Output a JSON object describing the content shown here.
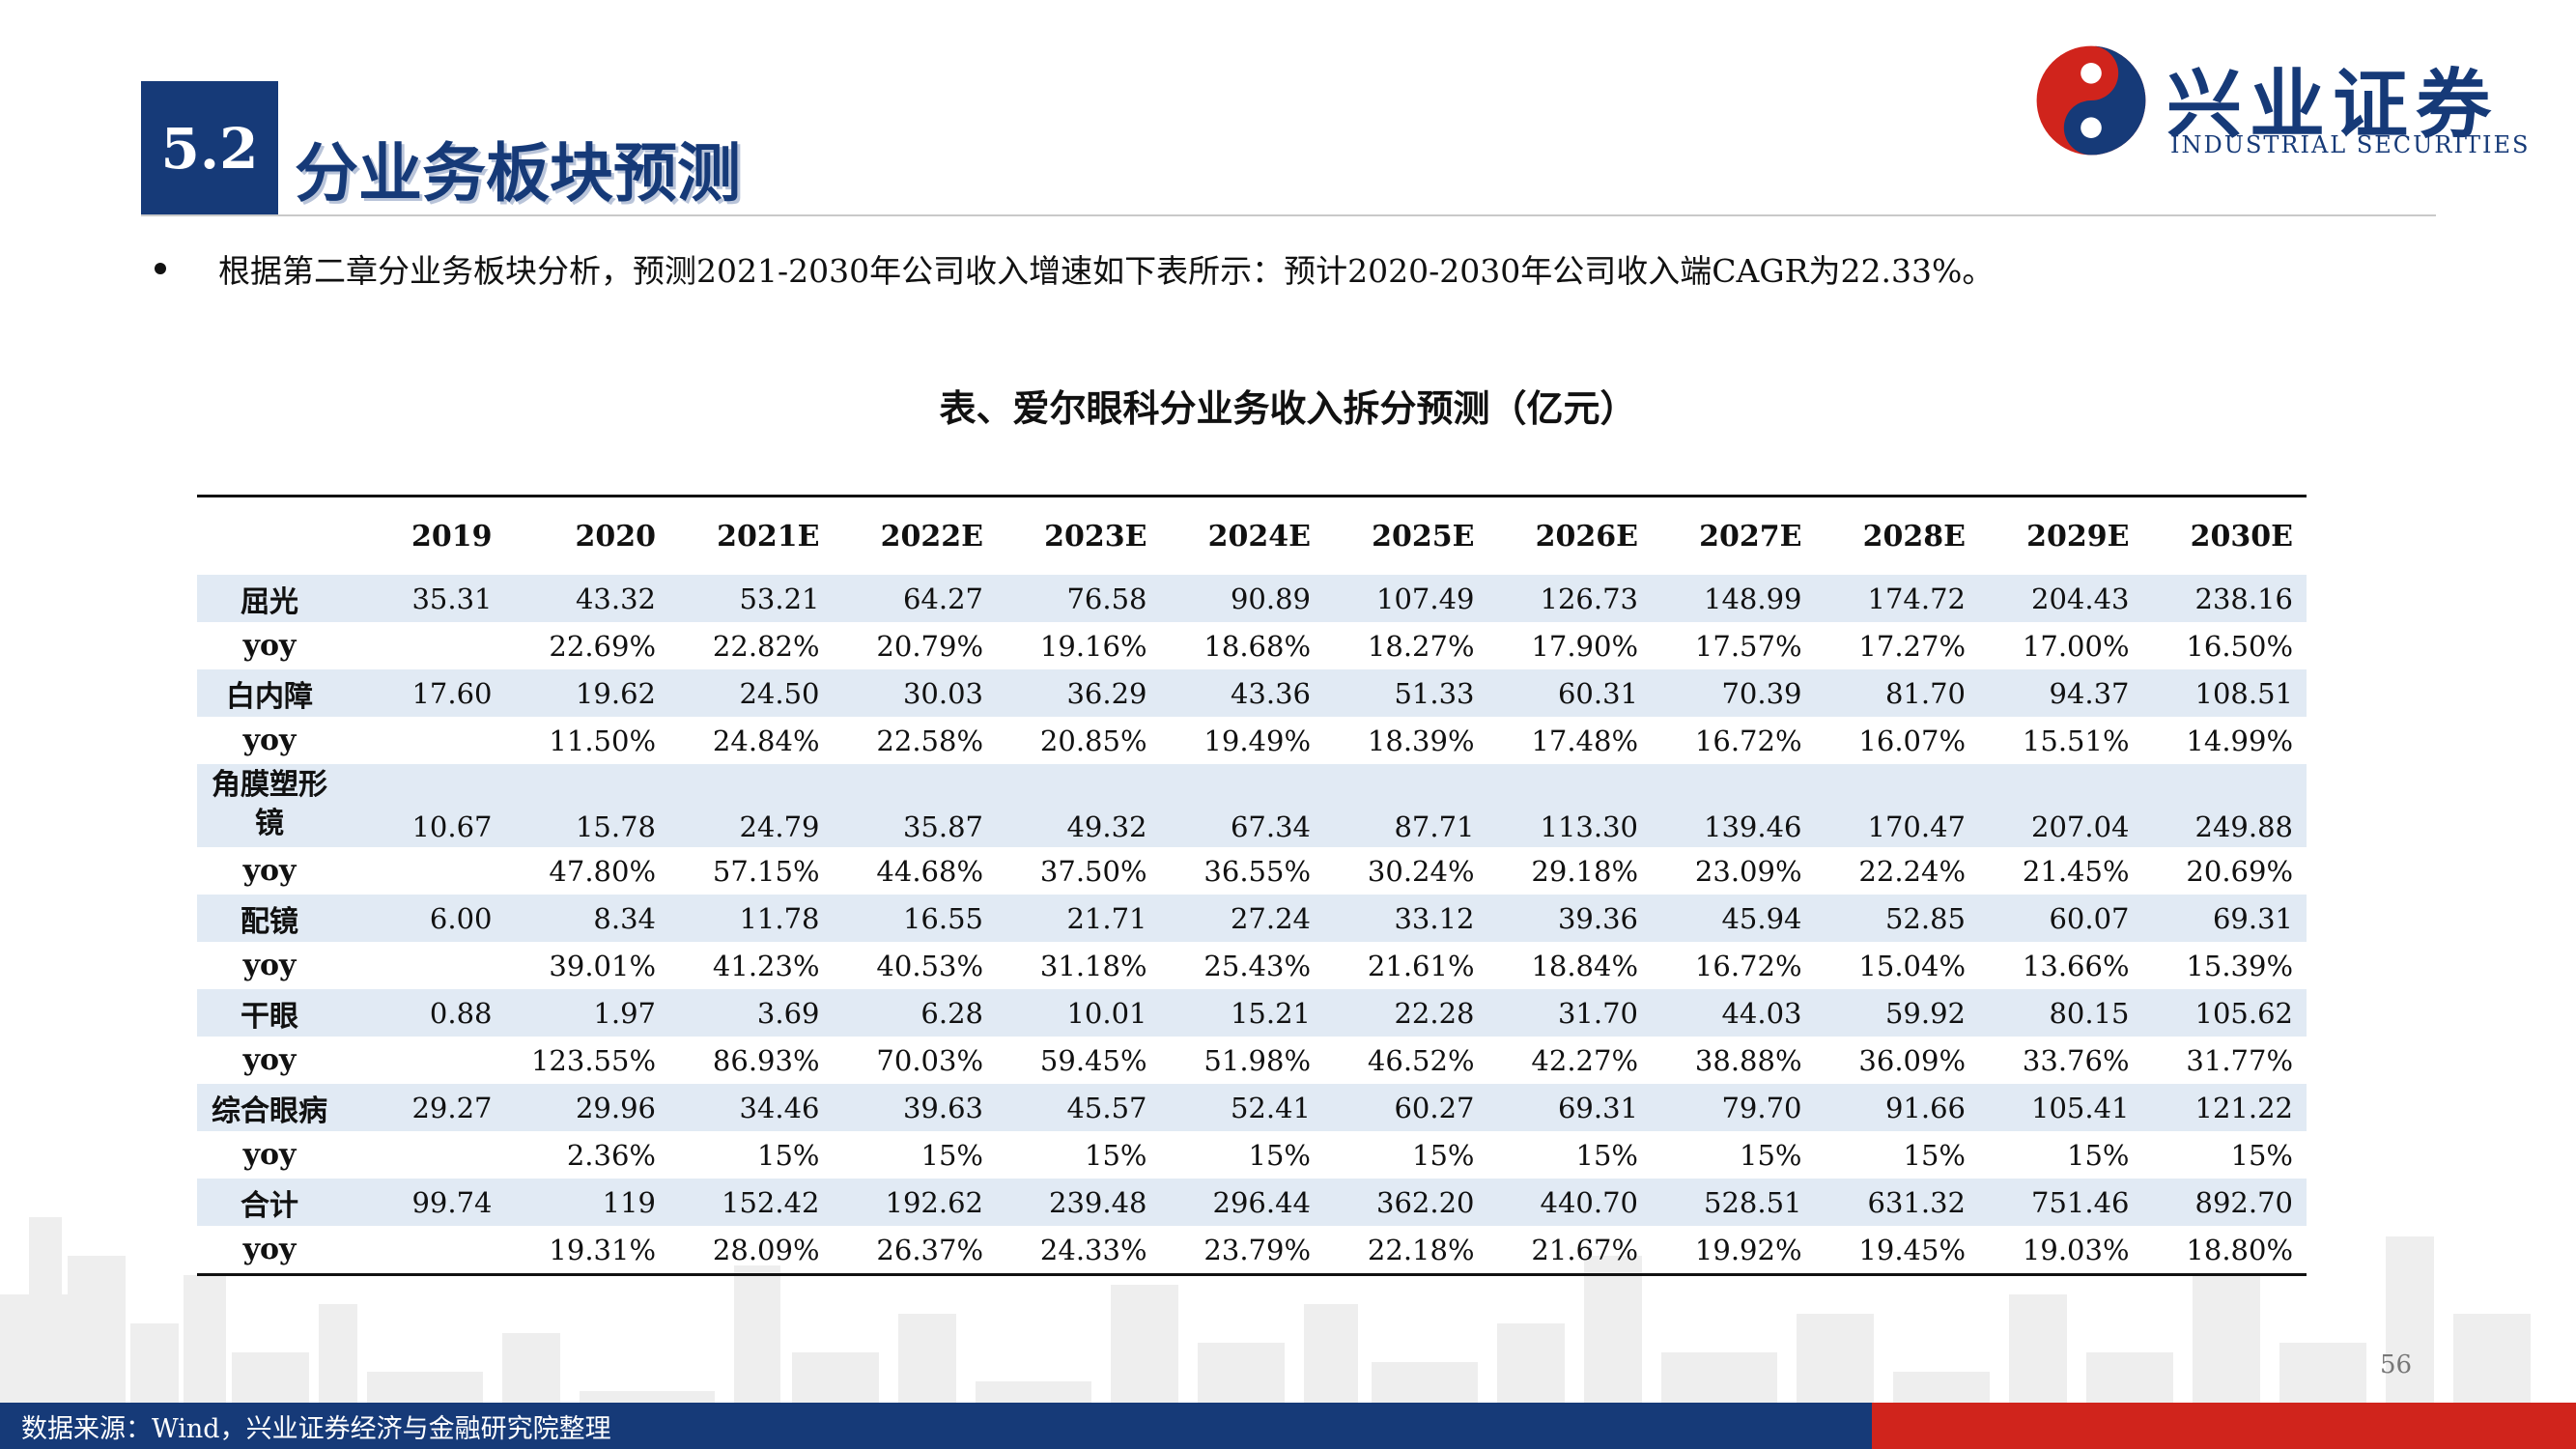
{
  "header": {
    "section_number": "5.2",
    "section_title": "分业务板块预测"
  },
  "logo": {
    "name_cn": "兴业证券",
    "name_en": "INDUSTRIAL SECURITIES",
    "colors": {
      "blue": "#163a78",
      "red": "#d0241c"
    }
  },
  "bullet": "根据第二章分业务板块分析，预测2021-2030年公司收入增速如下表所示：预计2020-2030年公司收入端CAGR为22.33%。",
  "table": {
    "title": "表、爱尔眼科分业务收入拆分预测（亿元）",
    "columns": [
      "",
      "2019",
      "2020",
      "2021E",
      "2022E",
      "2023E",
      "2024E",
      "2025E",
      "2026E",
      "2027E",
      "2028E",
      "2029E",
      "2030E"
    ],
    "rows": [
      {
        "label": "屈光",
        "values": [
          "35.31",
          "43.32",
          "53.21",
          "64.27",
          "76.58",
          "90.89",
          "107.49",
          "126.73",
          "148.99",
          "174.72",
          "204.43",
          "238.16"
        ]
      },
      {
        "label": "yoy",
        "values": [
          "",
          "22.69%",
          "22.82%",
          "20.79%",
          "19.16%",
          "18.68%",
          "18.27%",
          "17.90%",
          "17.57%",
          "17.27%",
          "17.00%",
          "16.50%"
        ]
      },
      {
        "label": "白内障",
        "values": [
          "17.60",
          "19.62",
          "24.50",
          "30.03",
          "36.29",
          "43.36",
          "51.33",
          "60.31",
          "70.39",
          "81.70",
          "94.37",
          "108.51"
        ]
      },
      {
        "label": "yoy",
        "values": [
          "",
          "11.50%",
          "24.84%",
          "22.58%",
          "20.85%",
          "19.49%",
          "18.39%",
          "17.48%",
          "16.72%",
          "16.07%",
          "15.51%",
          "14.99%"
        ]
      },
      {
        "label": "角膜塑形镜",
        "values": [
          "10.67",
          "15.78",
          "24.79",
          "35.87",
          "49.32",
          "67.34",
          "87.71",
          "113.30",
          "139.46",
          "170.47",
          "207.04",
          "249.88"
        ]
      },
      {
        "label": "yoy",
        "values": [
          "",
          "47.80%",
          "57.15%",
          "44.68%",
          "37.50%",
          "36.55%",
          "30.24%",
          "29.18%",
          "23.09%",
          "22.24%",
          "21.45%",
          "20.69%"
        ]
      },
      {
        "label": "配镜",
        "values": [
          "6.00",
          "8.34",
          "11.78",
          "16.55",
          "21.71",
          "27.24",
          "33.12",
          "39.36",
          "45.94",
          "52.85",
          "60.07",
          "69.31"
        ]
      },
      {
        "label": "yoy",
        "values": [
          "",
          "39.01%",
          "41.23%",
          "40.53%",
          "31.18%",
          "25.43%",
          "21.61%",
          "18.84%",
          "16.72%",
          "15.04%",
          "13.66%",
          "15.39%"
        ]
      },
      {
        "label": "干眼",
        "values": [
          "0.88",
          "1.97",
          "3.69",
          "6.28",
          "10.01",
          "15.21",
          "22.28",
          "31.70",
          "44.03",
          "59.92",
          "80.15",
          "105.62"
        ]
      },
      {
        "label": "yoy",
        "values": [
          "",
          "123.55%",
          "86.93%",
          "70.03%",
          "59.45%",
          "51.98%",
          "46.52%",
          "42.27%",
          "38.88%",
          "36.09%",
          "33.76%",
          "31.77%"
        ]
      },
      {
        "label": "综合眼病",
        "values": [
          "29.27",
          "29.96",
          "34.46",
          "39.63",
          "45.57",
          "52.41",
          "60.27",
          "69.31",
          "79.70",
          "91.66",
          "105.41",
          "121.22"
        ]
      },
      {
        "label": "yoy",
        "values": [
          "",
          "2.36%",
          "15%",
          "15%",
          "15%",
          "15%",
          "15%",
          "15%",
          "15%",
          "15%",
          "15%",
          "15%"
        ]
      },
      {
        "label": "合计",
        "values": [
          "99.74",
          "119",
          "152.42",
          "192.62",
          "239.48",
          "296.44",
          "362.20",
          "440.70",
          "528.51",
          "631.32",
          "751.46",
          "892.70"
        ]
      },
      {
        "label": "yoy",
        "values": [
          "",
          "19.31%",
          "28.09%",
          "26.37%",
          "24.33%",
          "23.79%",
          "22.18%",
          "21.67%",
          "19.92%",
          "19.45%",
          "19.03%",
          "18.80%"
        ]
      }
    ],
    "shaded_row_color": "#dce6f2"
  },
  "page_number": "56",
  "footer": {
    "source": "数据来源：Wind，兴业证券经济与金融研究院整理"
  }
}
